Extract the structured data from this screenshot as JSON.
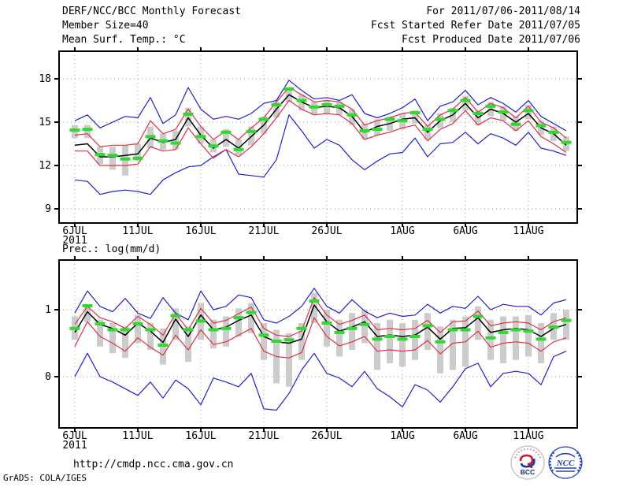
{
  "header": {
    "title": "DERF/NCC/BCC Monthly Forecast",
    "member_size": "Member Size=40",
    "temp_label": "Mean Surf. Temp.: °C",
    "for_range": "For 2011/07/06-2011/08/14",
    "refer_date": "Fcst Started Refer Date 2011/07/05",
    "produced_date": "Fcst Produced Date 2011/07/06"
  },
  "prec_title": "Prec.: log(mm/d)",
  "footer": {
    "url": "http://cmdp.ncc.cma.gov.cn",
    "credit": "GrADS: COLA/IGES",
    "logo_bcc": {
      "label": "BCC"
    },
    "logo_ncc": {
      "label": "NCC"
    }
  },
  "colors": {
    "envelope_blue": "#2020d0",
    "quartile_red": "#e03048",
    "mean_black": "#000000",
    "obs_green": "#30d830",
    "spread_grey": "#cccccc",
    "grid_grey": "#9a9a9a"
  },
  "chart_data": [
    {
      "type": "line",
      "title": "Mean Surf. Temp.: °C",
      "xlabel": "",
      "ylabel": "°C",
      "n_points": 40,
      "x_start_date": "2011/07/06",
      "x_end_date": "2011/08/14",
      "x_tick_indices": [
        0,
        5,
        10,
        15,
        20,
        26,
        31,
        36
      ],
      "x_tick_labels": [
        "6JUL",
        "11JUL",
        "16JUL",
        "21JUL",
        "26JUL",
        "1AUG",
        "6AUG",
        "11AUG"
      ],
      "x_first_tick_sublabel": "2011",
      "y_ticks": [
        9,
        12,
        15,
        18
      ],
      "ylim": [
        8.0,
        19.9
      ],
      "grid": true,
      "series": [
        {
          "name": "ensemble-max",
          "color": "#2020d0",
          "values": [
            15.1,
            15.5,
            14.6,
            15.0,
            15.4,
            15.3,
            16.7,
            14.9,
            15.5,
            17.4,
            15.9,
            15.2,
            15.4,
            15.2,
            15.6,
            16.3,
            16.5,
            17.9,
            17.2,
            16.6,
            16.7,
            16.5,
            16.9,
            15.6,
            15.3,
            15.6,
            16.0,
            16.6,
            15.1,
            16.1,
            16.4,
            17.2,
            16.2,
            16.7,
            16.3,
            15.7,
            16.5,
            15.4,
            14.9,
            14.4
          ]
        },
        {
          "name": "upper-quartile",
          "color": "#e03048",
          "values": [
            14.1,
            14.2,
            13.3,
            13.4,
            13.4,
            13.5,
            15.1,
            14.2,
            14.5,
            15.9,
            14.7,
            13.8,
            14.4,
            13.8,
            14.6,
            15.3,
            16.4,
            17.4,
            16.9,
            16.4,
            16.5,
            16.4,
            15.9,
            14.8,
            15.1,
            15.3,
            15.6,
            15.7,
            14.7,
            15.5,
            15.9,
            16.7,
            15.7,
            16.3,
            16.0,
            15.3,
            16.1,
            15.0,
            14.6,
            13.9
          ]
        },
        {
          "name": "ensemble-mean",
          "color": "#000000",
          "values": [
            13.4,
            13.5,
            12.6,
            12.6,
            12.7,
            12.8,
            13.9,
            13.6,
            13.8,
            15.3,
            14.1,
            13.2,
            13.8,
            13.2,
            14.0,
            14.8,
            15.9,
            16.9,
            16.4,
            16.0,
            16.1,
            16.0,
            15.4,
            14.3,
            14.7,
            14.9,
            15.2,
            15.3,
            14.3,
            15.1,
            15.5,
            16.3,
            15.3,
            15.9,
            15.6,
            15.0,
            15.6,
            14.6,
            14.2,
            13.4
          ]
        },
        {
          "name": "lower-quartile",
          "color": "#e03048",
          "values": [
            13.0,
            13.0,
            12.0,
            12.0,
            12.0,
            12.1,
            13.3,
            13.0,
            13.1,
            14.6,
            13.5,
            12.5,
            13.1,
            12.6,
            13.3,
            14.2,
            15.3,
            16.5,
            15.9,
            15.5,
            15.6,
            15.5,
            14.9,
            13.8,
            14.1,
            14.3,
            14.6,
            14.8,
            13.7,
            14.5,
            14.9,
            15.8,
            14.8,
            15.3,
            15.1,
            14.4,
            15.1,
            14.0,
            13.5,
            12.9
          ]
        },
        {
          "name": "ensemble-min",
          "color": "#2020d0",
          "values": [
            11.0,
            10.9,
            10.0,
            10.2,
            10.3,
            10.2,
            10.0,
            11.0,
            11.5,
            11.9,
            12.0,
            12.6,
            13.1,
            11.4,
            11.3,
            11.2,
            12.4,
            15.5,
            14.4,
            13.2,
            13.8,
            13.4,
            12.4,
            11.7,
            12.3,
            12.8,
            12.9,
            13.9,
            12.6,
            13.5,
            13.6,
            14.3,
            13.5,
            14.2,
            13.9,
            13.4,
            14.3,
            13.2,
            13.0,
            12.7
          ]
        },
        {
          "name": "observation-markers",
          "color": "#30d830",
          "style": "dash-marker",
          "values": [
            14.45,
            14.5,
            12.75,
            12.7,
            12.45,
            12.5,
            14.0,
            13.7,
            13.55,
            15.55,
            14.0,
            13.35,
            14.3,
            13.1,
            14.35,
            15.2,
            16.2,
            17.3,
            16.5,
            16.05,
            16.2,
            16.1,
            15.5,
            14.4,
            14.5,
            15.2,
            15.1,
            15.65,
            14.5,
            15.2,
            15.8,
            16.5,
            15.6,
            16.1,
            15.7,
            14.85,
            15.8,
            14.75,
            14.3,
            13.6
          ]
        }
      ],
      "bars": {
        "name": "member-spread-bar",
        "color": "#cccccc",
        "lo": [
          13.9,
          13.9,
          12.1,
          11.7,
          11.3,
          12.3,
          13.2,
          13.1,
          13.1,
          14.7,
          13.5,
          12.9,
          13.3,
          12.7,
          13.4,
          14.2,
          15.3,
          16.4,
          15.8,
          15.5,
          15.6,
          15.5,
          14.8,
          13.8,
          14.1,
          14.4,
          14.5,
          14.9,
          13.8,
          14.6,
          15.0,
          15.8,
          14.8,
          15.4,
          15.1,
          14.4,
          15.2,
          14.1,
          13.7,
          13.0
        ],
        "hi": [
          14.8,
          14.8,
          13.3,
          13.3,
          13.4,
          13.5,
          14.7,
          14.2,
          14.4,
          16.0,
          14.7,
          13.8,
          14.5,
          13.8,
          14.7,
          15.4,
          16.4,
          17.4,
          16.9,
          16.4,
          16.5,
          16.4,
          15.9,
          14.9,
          15.2,
          15.4,
          15.6,
          15.8,
          14.8,
          15.6,
          16.0,
          16.8,
          15.8,
          16.4,
          16.1,
          15.4,
          16.2,
          15.1,
          14.7,
          14.0
        ]
      }
    },
    {
      "type": "line",
      "title": "Prec.: log(mm/d)",
      "xlabel": "",
      "ylabel": "log(mm/d)",
      "n_points": 40,
      "x_start_date": "2011/07/06",
      "x_end_date": "2011/08/14",
      "x_tick_indices": [
        0,
        5,
        10,
        15,
        20,
        26,
        31,
        36
      ],
      "x_tick_labels": [
        "6JUL",
        "11JUL",
        "16JUL",
        "21JUL",
        "26JUL",
        "1AUG",
        "6AUG",
        "11AUG"
      ],
      "x_first_tick_sublabel": "2011",
      "y_ticks": [
        0,
        1
      ],
      "ylim": [
        -0.76,
        1.74
      ],
      "grid": true,
      "series": [
        {
          "name": "ensemble-max",
          "color": "#2020d0",
          "values": [
            0.95,
            1.28,
            1.05,
            0.97,
            1.17,
            0.95,
            0.87,
            1.18,
            0.95,
            0.85,
            1.28,
            1.0,
            1.05,
            1.22,
            1.18,
            0.85,
            0.8,
            0.9,
            1.05,
            1.32,
            1.05,
            0.95,
            1.15,
            0.98,
            0.88,
            0.95,
            0.9,
            0.92,
            1.08,
            0.95,
            1.05,
            1.02,
            1.2,
            1.0,
            1.08,
            1.05,
            1.05,
            0.92,
            1.1,
            1.15
          ]
        },
        {
          "name": "upper-quartile",
          "color": "#e03048",
          "values": [
            0.78,
            1.05,
            0.88,
            0.82,
            0.72,
            0.9,
            0.78,
            0.62,
            0.94,
            0.7,
            1.02,
            0.8,
            0.84,
            0.94,
            1.04,
            0.72,
            0.62,
            0.6,
            0.68,
            1.18,
            0.92,
            0.78,
            0.84,
            0.92,
            0.7,
            0.72,
            0.7,
            0.72,
            0.84,
            0.66,
            0.82,
            0.83,
            0.98,
            0.76,
            0.8,
            0.82,
            0.8,
            0.7,
            0.82,
            0.88
          ]
        },
        {
          "name": "ensemble-mean",
          "color": "#000000",
          "values": [
            0.66,
            0.97,
            0.78,
            0.72,
            0.62,
            0.8,
            0.68,
            0.51,
            0.86,
            0.6,
            0.92,
            0.7,
            0.74,
            0.84,
            0.92,
            0.6,
            0.52,
            0.5,
            0.56,
            1.07,
            0.82,
            0.68,
            0.74,
            0.82,
            0.6,
            0.62,
            0.6,
            0.62,
            0.74,
            0.56,
            0.72,
            0.73,
            0.88,
            0.66,
            0.7,
            0.72,
            0.7,
            0.6,
            0.72,
            0.78
          ]
        },
        {
          "name": "lower-quartile",
          "color": "#e03048",
          "values": [
            0.45,
            0.82,
            0.6,
            0.5,
            0.38,
            0.58,
            0.44,
            0.32,
            0.62,
            0.4,
            0.7,
            0.48,
            0.52,
            0.62,
            0.72,
            0.38,
            0.3,
            0.28,
            0.36,
            0.88,
            0.6,
            0.46,
            0.52,
            0.6,
            0.38,
            0.4,
            0.38,
            0.4,
            0.54,
            0.34,
            0.5,
            0.52,
            0.68,
            0.44,
            0.5,
            0.52,
            0.5,
            0.38,
            0.52,
            0.58
          ]
        },
        {
          "name": "ensemble-min",
          "color": "#2020d0",
          "values": [
            0.0,
            0.35,
            0.0,
            -0.08,
            -0.18,
            -0.28,
            -0.08,
            -0.32,
            -0.05,
            -0.18,
            -0.42,
            -0.02,
            -0.08,
            -0.15,
            0.05,
            -0.48,
            -0.5,
            -0.25,
            0.1,
            0.35,
            0.05,
            -0.02,
            -0.15,
            0.08,
            -0.18,
            -0.3,
            -0.45,
            -0.12,
            -0.2,
            -0.38,
            -0.15,
            0.12,
            0.2,
            -0.15,
            0.05,
            0.08,
            0.05,
            -0.12,
            0.3,
            0.38
          ]
        },
        {
          "name": "observation-markers",
          "color": "#30d830",
          "style": "dash-marker",
          "values": [
            0.72,
            1.06,
            0.79,
            0.7,
            0.7,
            0.79,
            0.7,
            0.47,
            0.91,
            0.7,
            0.83,
            0.7,
            0.72,
            0.88,
            0.96,
            0.62,
            0.53,
            0.55,
            0.72,
            1.13,
            0.8,
            0.66,
            0.72,
            0.78,
            0.56,
            0.6,
            0.56,
            0.6,
            0.76,
            0.52,
            0.7,
            0.7,
            0.9,
            0.58,
            0.66,
            0.7,
            0.68,
            0.56,
            0.74,
            0.84
          ]
        }
      ],
      "bars": {
        "name": "member-spread-bar",
        "color": "#cccccc",
        "lo": [
          0.55,
          0.82,
          0.45,
          0.35,
          0.28,
          0.5,
          0.4,
          0.18,
          0.55,
          0.22,
          0.55,
          0.42,
          0.45,
          0.6,
          0.65,
          0.25,
          -0.1,
          -0.15,
          0.25,
          0.8,
          0.45,
          0.3,
          0.4,
          0.5,
          0.1,
          0.2,
          0.15,
          0.25,
          0.4,
          0.05,
          0.1,
          0.15,
          0.55,
          0.25,
          0.2,
          0.25,
          0.3,
          0.2,
          0.55,
          0.55
        ],
        "hi": [
          0.9,
          1.05,
          0.85,
          0.8,
          0.75,
          0.92,
          0.8,
          0.72,
          1.02,
          0.75,
          1.1,
          0.85,
          0.9,
          1.02,
          1.1,
          0.8,
          0.7,
          0.65,
          0.8,
          1.25,
          1.0,
          0.85,
          0.95,
          1.0,
          0.8,
          0.85,
          0.8,
          0.85,
          0.95,
          0.75,
          0.85,
          0.9,
          1.05,
          0.85,
          0.9,
          0.9,
          0.92,
          0.8,
          0.95,
          1.0
        ]
      }
    }
  ]
}
